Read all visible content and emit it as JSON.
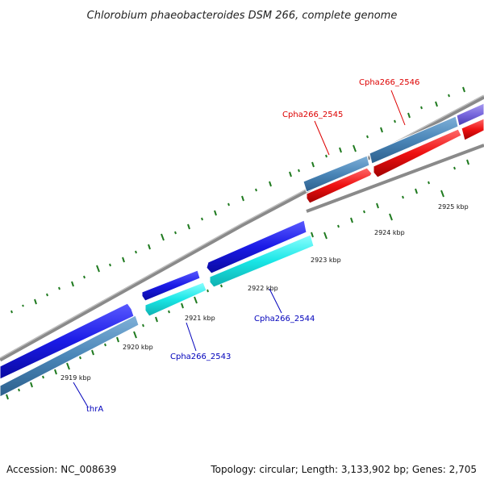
{
  "title": "Chlorobium phaeobacteroides DSM 266, complete genome",
  "footer": {
    "accession": "Accession: NC_008639",
    "summary": "Topology: circular; Length: 3,133,902 bp; Genes: 2,705"
  },
  "colors": {
    "backbone": "#8a8a8a",
    "tick": "#1f7a1f",
    "gene_blue": "#1a1ae6",
    "gene_cyan": "#19e6e6",
    "gene_steel": "#4a86b8",
    "gene_red": "#ee1111",
    "gene_purple": "#7766dd",
    "label_red": "#dd0000",
    "label_blue": "#0000bb"
  },
  "scale_labels": [
    "2919 kbp",
    "2920 kbp",
    "2921 kbp",
    "2922 kbp",
    "2923 kbp",
    "2924 kbp",
    "2925 kbp"
  ],
  "gene_labels": {
    "thrA": "thrA",
    "cpha2543": "Cpha266_2543",
    "cpha2544": "Cpha266_2544",
    "cpha2545": "Cpha266_2545",
    "cpha2546": "Cpha266_2546"
  }
}
